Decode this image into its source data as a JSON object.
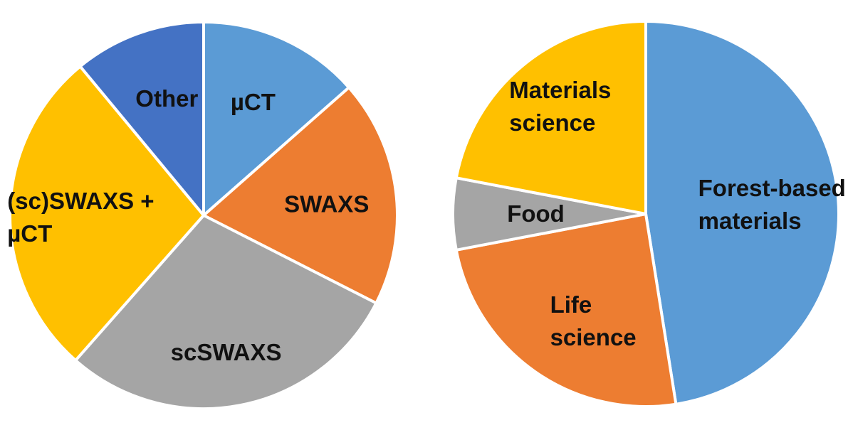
{
  "chart_data": [
    {
      "type": "pie",
      "slices": [
        {
          "label": "µCT",
          "value": 13.5,
          "color": "#5B9BD5"
        },
        {
          "label": "SWAXS",
          "value": 19,
          "color": "#ED7D31"
        },
        {
          "label": "scSWAXS",
          "value": 29,
          "color": "#A5A5A5"
        },
        {
          "label": "(sc)SWAXS +\nµCT",
          "value": 27.5,
          "color": "#FFC000"
        },
        {
          "label": "Other",
          "value": 11,
          "color": "#4472C4"
        }
      ]
    },
    {
      "type": "pie",
      "slices": [
        {
          "label": "Forest-based\nmaterials",
          "value": 47.5,
          "color": "#5B9BD5"
        },
        {
          "label": "Life\nscience",
          "value": 24.5,
          "color": "#ED7D31"
        },
        {
          "label": "Food",
          "value": 6,
          "color": "#A5A5A5"
        },
        {
          "label": "Materials\nscience",
          "value": 22,
          "color": "#FFC000"
        }
      ]
    }
  ]
}
